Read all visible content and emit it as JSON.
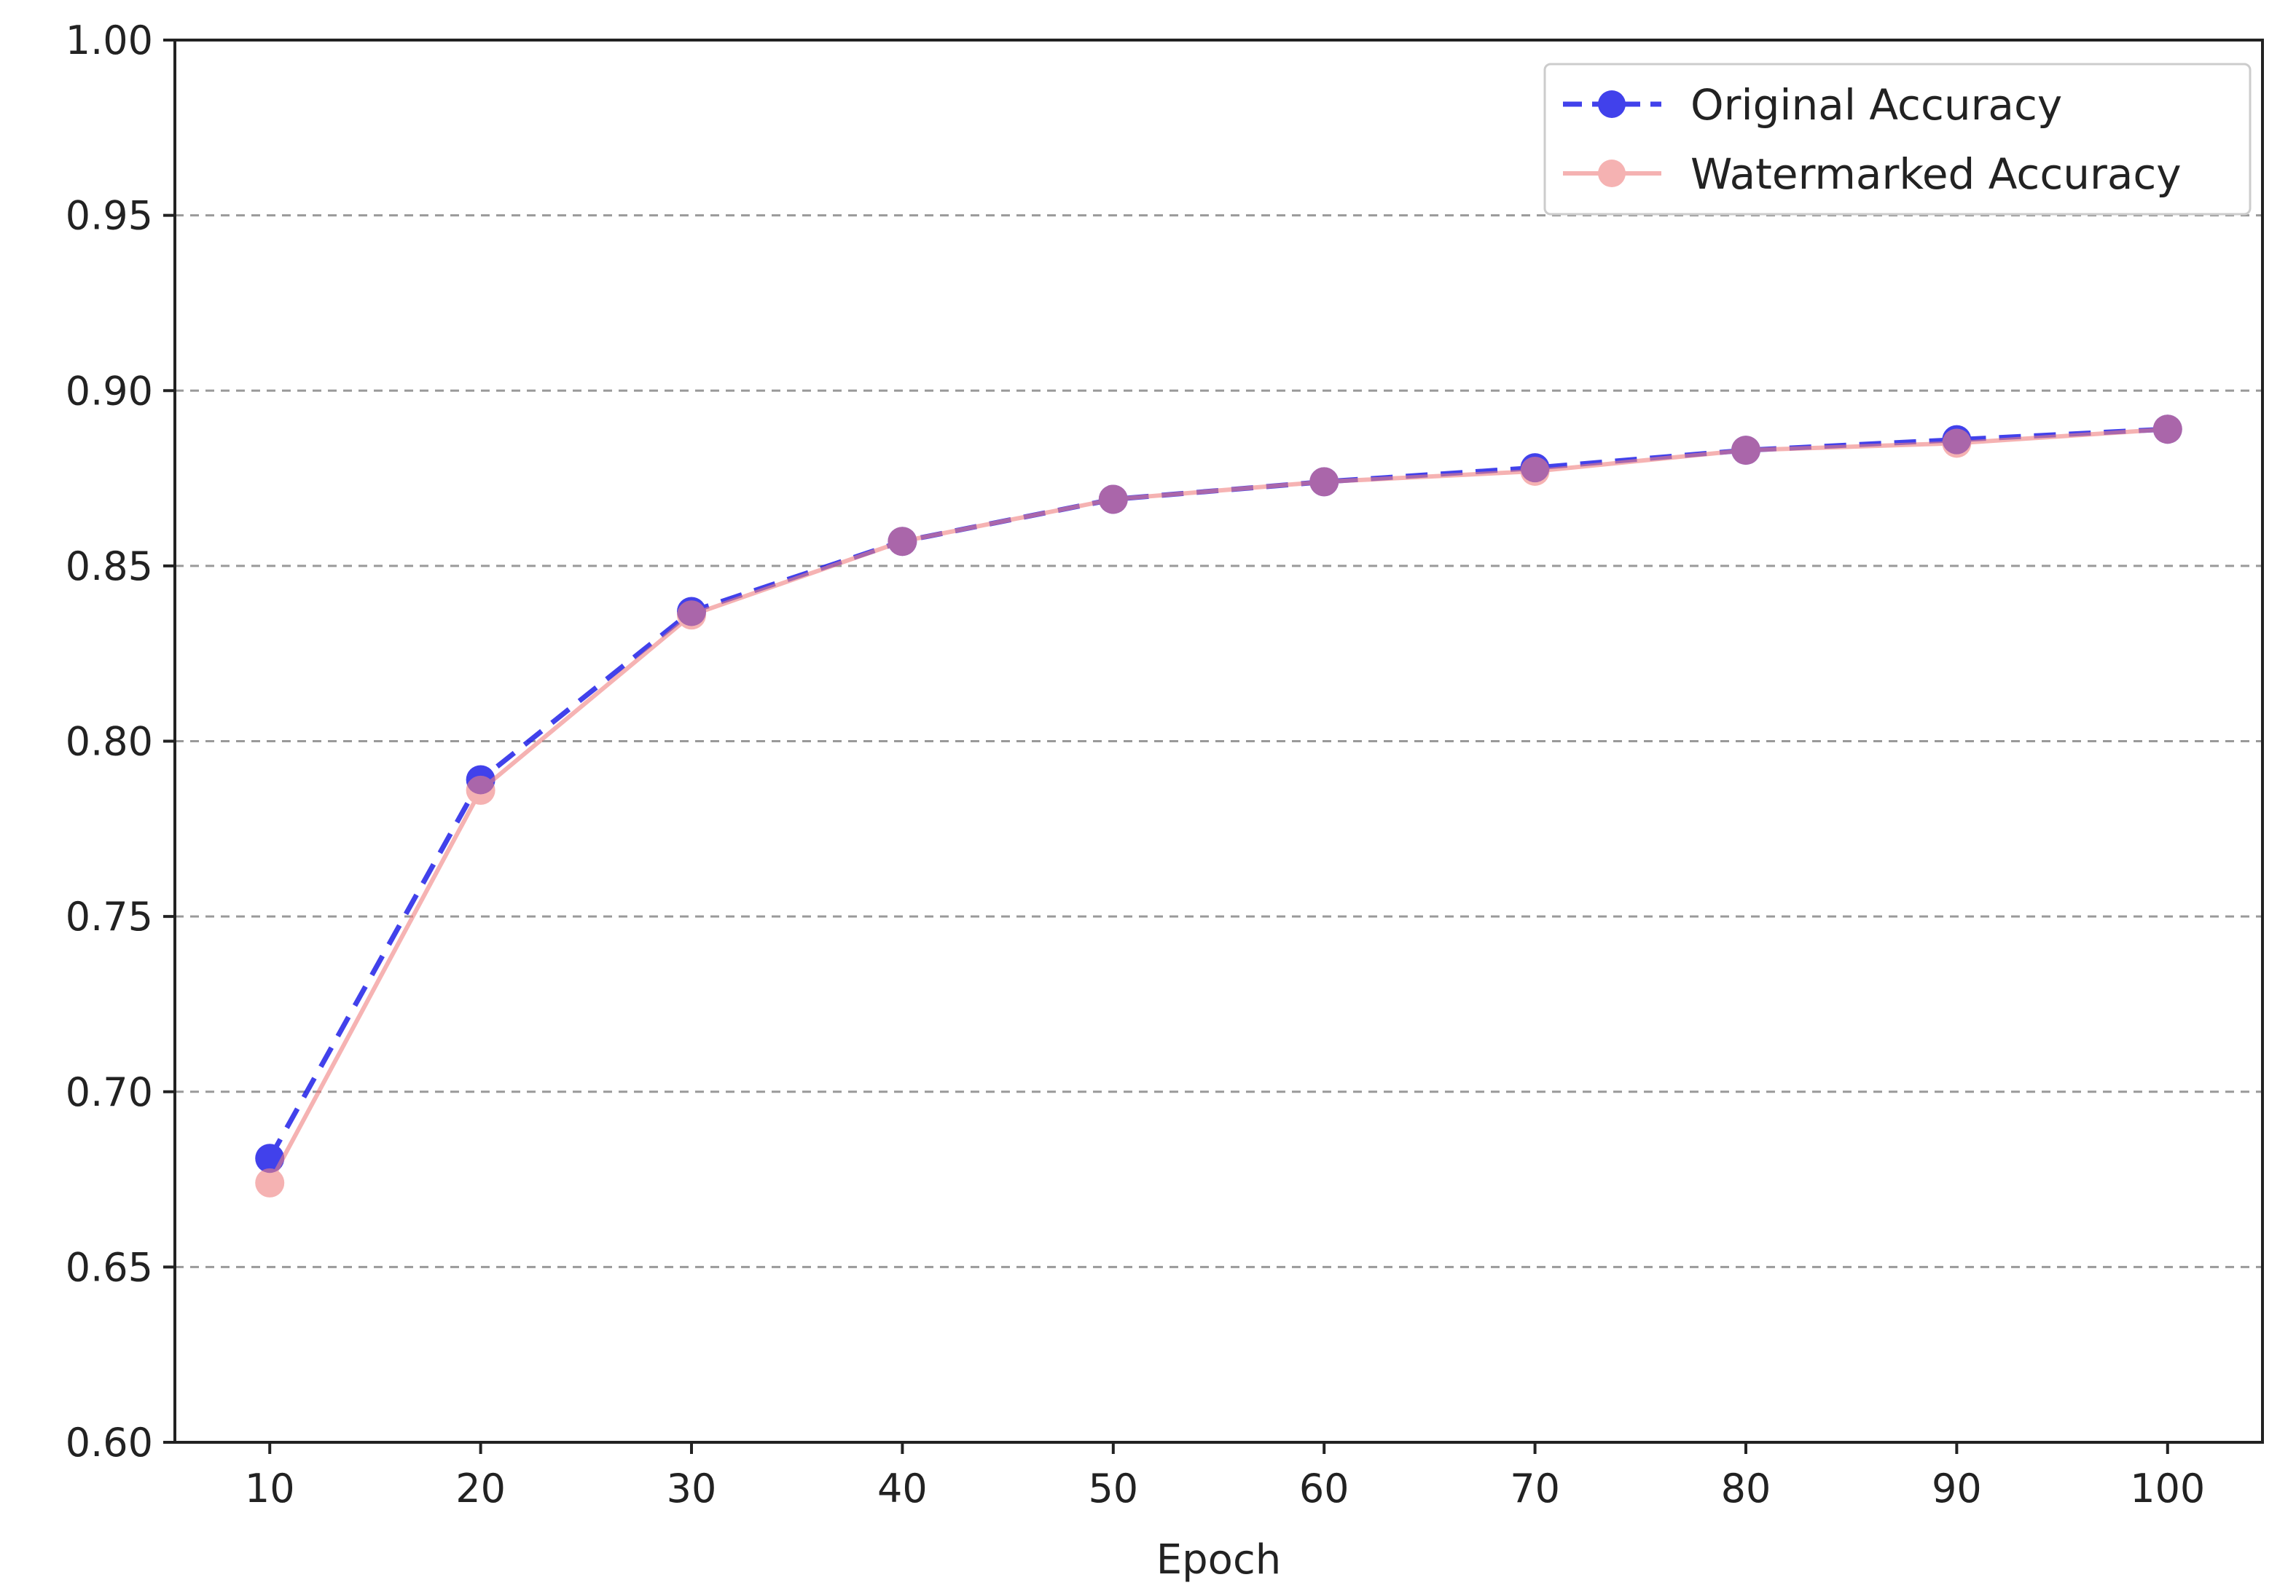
{
  "chart_data": {
    "type": "line",
    "title": "",
    "xlabel": "Epoch",
    "ylabel": "",
    "xlim": [
      5.5,
      104.5
    ],
    "ylim": [
      0.6,
      1.0
    ],
    "x_ticks": [
      10,
      20,
      30,
      40,
      50,
      60,
      70,
      80,
      90,
      100
    ],
    "x_tick_labels": [
      "10",
      "20",
      "30",
      "40",
      "50",
      "60",
      "70",
      "80",
      "90",
      "100"
    ],
    "y_ticks": [
      0.6,
      0.65,
      0.7,
      0.75,
      0.8,
      0.85,
      0.9,
      0.95,
      1.0
    ],
    "y_tick_labels": [
      "0.60",
      "0.65",
      "0.70",
      "0.75",
      "0.80",
      "0.85",
      "0.90",
      "0.95",
      "1.00"
    ],
    "grid": "y-dashed",
    "legend_position": "top-right",
    "x": [
      10,
      20,
      30,
      40,
      50,
      60,
      70,
      80,
      90,
      100
    ],
    "series": [
      {
        "name": "Original Accuracy",
        "values": [
          0.681,
          0.789,
          0.837,
          0.857,
          0.869,
          0.874,
          0.878,
          0.883,
          0.886,
          0.889
        ],
        "color": "#2020e8",
        "line_style": "dashed",
        "marker": "circle"
      },
      {
        "name": "Watermarked Accuracy",
        "values": [
          0.674,
          0.786,
          0.836,
          0.857,
          0.869,
          0.874,
          0.877,
          0.883,
          0.885,
          0.889
        ],
        "color": "#f08080",
        "line_style": "solid",
        "marker": "circle"
      }
    ]
  }
}
